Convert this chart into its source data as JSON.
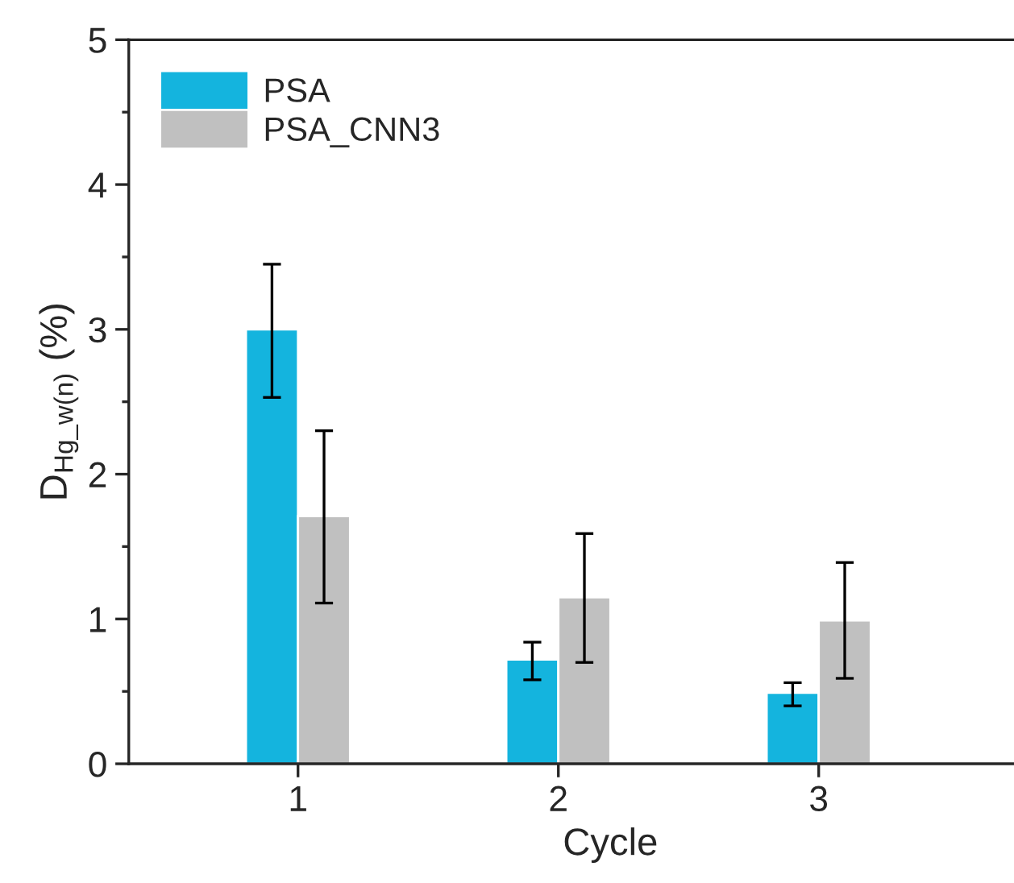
{
  "chart_data": {
    "type": "bar",
    "xlabel": "Cycle",
    "ylabel": "D$_{Hg_w(n)}$ (%)",
    "categories": [
      "1",
      "2",
      "3"
    ],
    "series": [
      {
        "name": "PSA",
        "color": "#14b4de",
        "values": [
          3.0,
          0.72,
          0.49
        ],
        "errors": [
          [
            2.53,
            3.45
          ],
          [
            0.58,
            0.84
          ],
          [
            0.4,
            0.56
          ]
        ]
      },
      {
        "name": "PSA_CNN3",
        "color": "#c0c0c0",
        "values": [
          1.71,
          1.15,
          0.99
        ],
        "errors": [
          [
            1.11,
            2.3
          ],
          [
            0.7,
            1.59
          ],
          [
            0.59,
            1.39
          ]
        ]
      }
    ],
    "ylim": [
      0,
      5
    ],
    "yticks": [
      0,
      1,
      2,
      3,
      4,
      5
    ],
    "grid": false,
    "legend": "top left"
  }
}
